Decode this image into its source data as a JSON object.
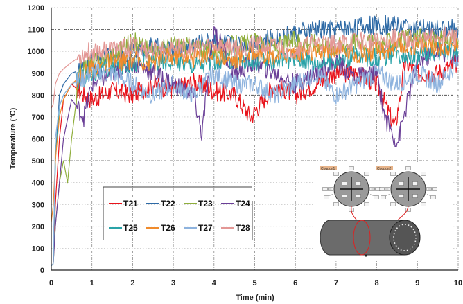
{
  "chart_data": {
    "type": "line",
    "title": "",
    "xlabel": "Time (min)",
    "ylabel": "Temperature (°C)",
    "xlim": [
      0,
      10
    ],
    "ylim": [
      0,
      1200
    ],
    "x_ticks": [
      "0",
      "1",
      "2",
      "3",
      "4",
      "5",
      "6",
      "7",
      "8",
      "9",
      "10"
    ],
    "y_ticks": [
      "0",
      "100",
      "200",
      "300",
      "400",
      "500",
      "600",
      "700",
      "800",
      "900",
      "1000",
      "1100",
      "1200"
    ],
    "grid": "dashed, y every 100 labelled; emphasized at 500, 800, 1100; x at every minute",
    "legend_placement": "bottom-center",
    "series": [
      {
        "name": "T21",
        "color": "#e8141c",
        "x": [
          0,
          0.05,
          0.1,
          0.2,
          0.3,
          0.5,
          0.8,
          1,
          1.5,
          2,
          2.5,
          3,
          3.5,
          4,
          4.5,
          4.9,
          5.5,
          6,
          6.5,
          7,
          7.5,
          8,
          8.45,
          8.7,
          9,
          9.5,
          10
        ],
        "y": [
          20,
          30,
          300,
          600,
          780,
          850,
          800,
          780,
          820,
          800,
          850,
          820,
          860,
          820,
          800,
          700,
          850,
          800,
          850,
          900,
          900,
          850,
          650,
          950,
          900,
          900,
          950
        ]
      },
      {
        "name": "T22",
        "color": "#2e6aa6",
        "x": [
          0,
          0.05,
          0.1,
          0.2,
          0.3,
          0.5,
          0.8,
          1,
          1.5,
          2,
          2.5,
          3,
          3.5,
          4,
          4.5,
          5,
          5.5,
          6,
          6.5,
          7,
          7.5,
          8,
          8.5,
          9,
          9.5,
          10
        ],
        "y": [
          20,
          30,
          500,
          800,
          850,
          900,
          920,
          950,
          980,
          1000,
          1020,
          1000,
          1030,
          1050,
          1030,
          1040,
          1060,
          1080,
          1100,
          1100,
          1110,
          1120,
          1120,
          1100,
          1100,
          1100
        ]
      },
      {
        "name": "T23",
        "color": "#8fae3c",
        "x": [
          0,
          0.05,
          0.1,
          0.2,
          0.3,
          0.4,
          0.5,
          0.7,
          1,
          1.5,
          2,
          2.5,
          3,
          3.5,
          4,
          4.5,
          5,
          5.5,
          6,
          6.5,
          7,
          7.5,
          8,
          8.5,
          9,
          9.5,
          10
        ],
        "y": [
          20,
          30,
          200,
          400,
          500,
          400,
          600,
          900,
          950,
          980,
          1050,
          1000,
          1030,
          1020,
          1000,
          1030,
          1040,
          1020,
          1050,
          1040,
          1020,
          1050,
          1030,
          1050,
          1060,
          1050,
          1050
        ]
      },
      {
        "name": "T24",
        "color": "#6a3f97",
        "x": [
          0,
          0.05,
          0.1,
          0.3,
          0.5,
          0.8,
          1,
          1.5,
          2,
          2.5,
          3,
          3.5,
          3.7,
          4,
          4.5,
          5,
          5.5,
          6,
          6.5,
          7,
          7.5,
          8,
          8.2,
          8.5,
          9,
          9.5,
          10
        ],
        "y": [
          20,
          30,
          200,
          600,
          780,
          700,
          850,
          900,
          950,
          900,
          850,
          800,
          620,
          1100,
          900,
          950,
          900,
          850,
          900,
          950,
          880,
          900,
          700,
          580,
          950,
          1000,
          980
        ]
      },
      {
        "name": "T25",
        "color": "#2aa3a8",
        "x": [
          0,
          0.05,
          0.1,
          0.2,
          0.3,
          0.5,
          0.8,
          1,
          1.5,
          2,
          2.5,
          3,
          3.5,
          4,
          4.5,
          5,
          5.5,
          6,
          6.5,
          7,
          7.5,
          8,
          8.5,
          9,
          9.5,
          10
        ],
        "y": [
          20,
          30,
          500,
          750,
          800,
          850,
          880,
          900,
          920,
          950,
          950,
          960,
          940,
          950,
          960,
          950,
          960,
          970,
          950,
          960,
          980,
          970,
          990,
          980,
          1000,
          1000
        ]
      },
      {
        "name": "T26",
        "color": "#f08b2c",
        "x": [
          0,
          0.05,
          0.1,
          0.2,
          0.3,
          0.5,
          0.8,
          1,
          1.5,
          2,
          2.5,
          3,
          3.5,
          4,
          4.5,
          5,
          5.5,
          6,
          6.5,
          7,
          7.5,
          8,
          8.5,
          9,
          9.5,
          10
        ],
        "y": [
          220,
          300,
          500,
          700,
          780,
          850,
          900,
          920,
          950,
          960,
          950,
          980,
          970,
          990,
          960,
          1000,
          980,
          1000,
          990,
          1010,
          990,
          1000,
          1020,
          1030,
          1020,
          1030
        ]
      },
      {
        "name": "T27",
        "color": "#8eb3de",
        "x": [
          0,
          0.05,
          0.1,
          0.2,
          0.3,
          0.5,
          0.8,
          1,
          1.5,
          2,
          2.5,
          3,
          3.5,
          4,
          4.5,
          5,
          5.5,
          6,
          6.5,
          7,
          7.5,
          8,
          8.5,
          9,
          9.5,
          10
        ],
        "y": [
          20,
          30,
          600,
          750,
          800,
          850,
          880,
          900,
          900,
          850,
          800,
          850,
          800,
          900,
          850,
          850,
          800,
          850,
          900,
          800,
          850,
          900,
          850,
          900,
          850,
          950
        ]
      },
      {
        "name": "T28",
        "color": "#e39795",
        "x": [
          0,
          0.05,
          0.1,
          0.2,
          0.3,
          0.5,
          0.8,
          1,
          1.5,
          2,
          2.5,
          3,
          3.5,
          4,
          4.5,
          5,
          5.5,
          6,
          6.5,
          7,
          7.5,
          8,
          8.5,
          9,
          9.5,
          10
        ],
        "y": [
          740,
          760,
          850,
          900,
          920,
          950,
          990,
          1000,
          1010,
          1020,
          1000,
          1020,
          1010,
          1030,
          1020,
          1030,
          1020,
          1010,
          1040,
          1030,
          1050,
          1040,
          1060,
          1050,
          1070,
          1060
        ]
      }
    ]
  },
  "inset": {
    "label_left": "Coupon1",
    "label_right": "Coupon2"
  }
}
